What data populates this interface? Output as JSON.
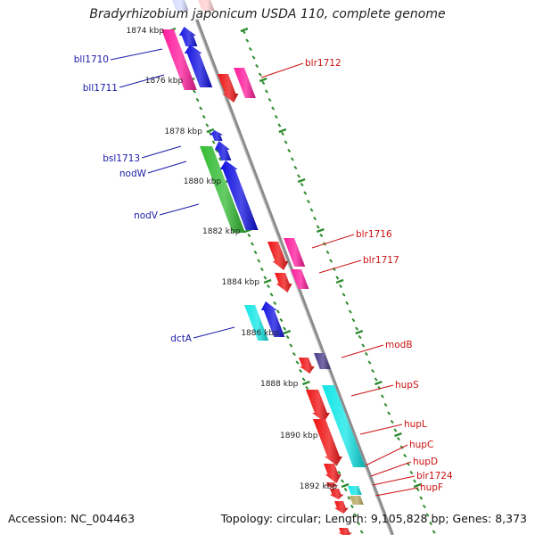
{
  "title": "Bradyrhizobium japonicum USDA 110, complete genome",
  "accession_text": "Accession: NC_004463",
  "stats_text": "Topology: circular; Length: 9,105,828 bp; Genes: 8,373",
  "colors": {
    "backbone": "#8c8c8c",
    "tick": "#2e8b2e",
    "label_left": "#1a1aa8",
    "label_right": "#cc1111"
  },
  "kbp_labels": [
    "1874 kbp",
    "1876 kbp",
    "1878 kbp",
    "1880 kbp",
    "1882 kbp",
    "1884 kbp",
    "1886 kbp",
    "1888 kbp",
    "1890 kbp",
    "1892 kbp"
  ],
  "left_genes": [
    {
      "label": "bll1710",
      "color": "#ff1a9c"
    },
    {
      "label": "bll1711",
      "color": "#1010e0"
    },
    {
      "label": "bsl1713",
      "color": "#1010e0"
    },
    {
      "label": "nodW",
      "color": "#1010e0"
    },
    {
      "label": "nodV",
      "color": "#33bb33"
    },
    {
      "label": "dctA",
      "color": "#11e6e6"
    }
  ],
  "right_genes": [
    {
      "label": "blr1712",
      "color": "#ee1111"
    },
    {
      "label": "blr1716",
      "color": "#ee1111"
    },
    {
      "label": "blr1717",
      "color": "#ff1a9c"
    },
    {
      "label": "modB",
      "color": "#4a3a8a"
    },
    {
      "label": "hupS",
      "color": "#ee1111"
    },
    {
      "label": "hupL",
      "color": "#11e6e6"
    },
    {
      "label": "hupC",
      "color": "#ee1111"
    },
    {
      "label": "hupD",
      "color": "#ee1111"
    },
    {
      "label": "blr1724",
      "color": "#ee1111"
    },
    {
      "label": "hupF",
      "color": "#b8a860"
    }
  ]
}
